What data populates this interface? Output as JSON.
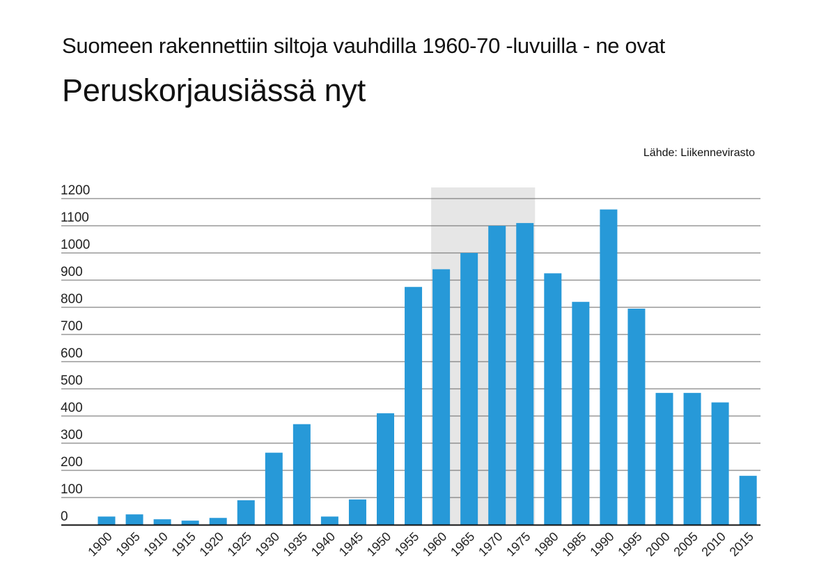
{
  "chart_data": {
    "type": "bar",
    "subtitle": "Suomeen rakennettiin siltoja vauhdilla 1960-70 -luvuilla - ne ovat",
    "title": "Peruskorjausiässä nyt",
    "source": "Lähde: Liikennevirasto",
    "categories": [
      "1900",
      "1905",
      "1910",
      "1915",
      "1920",
      "1925",
      "1930",
      "1935",
      "1940",
      "1945",
      "1950",
      "1955",
      "1960",
      "1965",
      "1970",
      "1975",
      "1980",
      "1985",
      "1990",
      "1995",
      "2000",
      "2005",
      "2010",
      "2015"
    ],
    "values": [
      30,
      38,
      20,
      15,
      25,
      90,
      265,
      370,
      30,
      93,
      410,
      875,
      940,
      1000,
      1100,
      1110,
      925,
      820,
      1160,
      795,
      485,
      485,
      450,
      180
    ],
    "highlight_range": [
      "1960",
      "1975"
    ],
    "yticks": [
      0,
      100,
      200,
      300,
      400,
      500,
      600,
      700,
      800,
      900,
      1000,
      1100,
      1200
    ],
    "ylim": [
      0,
      1200
    ],
    "grid": true,
    "colors": {
      "bar": "#2799d8",
      "highlight": "#e6e6e6",
      "grid": "#666666",
      "axis": "#111111"
    }
  }
}
